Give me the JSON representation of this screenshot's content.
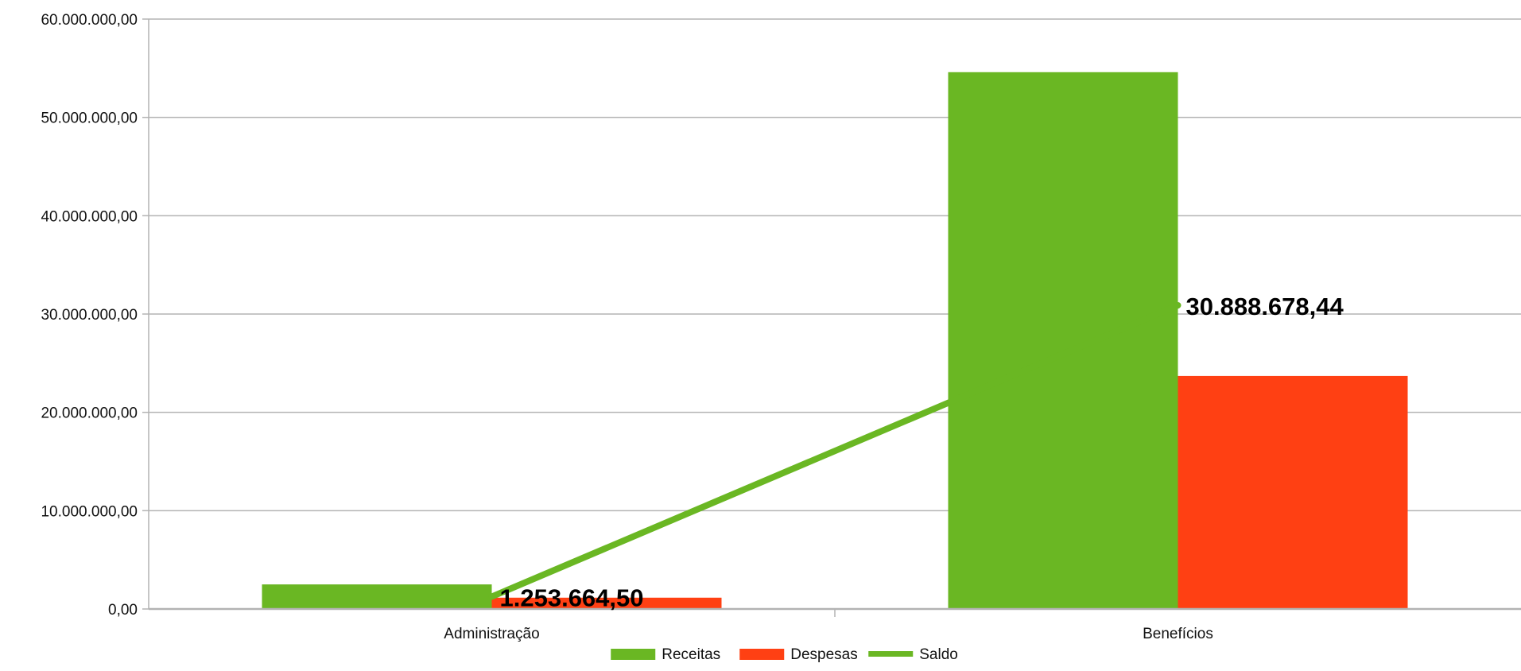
{
  "chart_data": {
    "type": "bar",
    "categories": [
      "Administração",
      "Benefícios"
    ],
    "series": [
      {
        "name": "Receitas",
        "kind": "bar",
        "color": "#6ab723",
        "values": [
          2500000,
          54600000
        ]
      },
      {
        "name": "Despesas",
        "kind": "bar",
        "color": "#ff4013",
        "values": [
          1150000,
          23700000
        ]
      },
      {
        "name": "Saldo",
        "kind": "line",
        "color": "#6ab723",
        "values": [
          1253664.5,
          30888678.44
        ],
        "data_labels": [
          "1.253.664,50",
          "30.888.678,44"
        ]
      }
    ],
    "ylim": [
      0,
      60000000
    ],
    "yticks": [
      0,
      10000000,
      20000000,
      30000000,
      40000000,
      50000000,
      60000000
    ],
    "ytick_labels": [
      "0,00",
      "10.000.000,00",
      "20.000.000,00",
      "30.000.000,00",
      "40.000.000,00",
      "50.000.000,00",
      "60.000.000,00"
    ],
    "grid": true,
    "legend_position": "bottom",
    "title": "",
    "xlabel": "",
    "ylabel": ""
  }
}
